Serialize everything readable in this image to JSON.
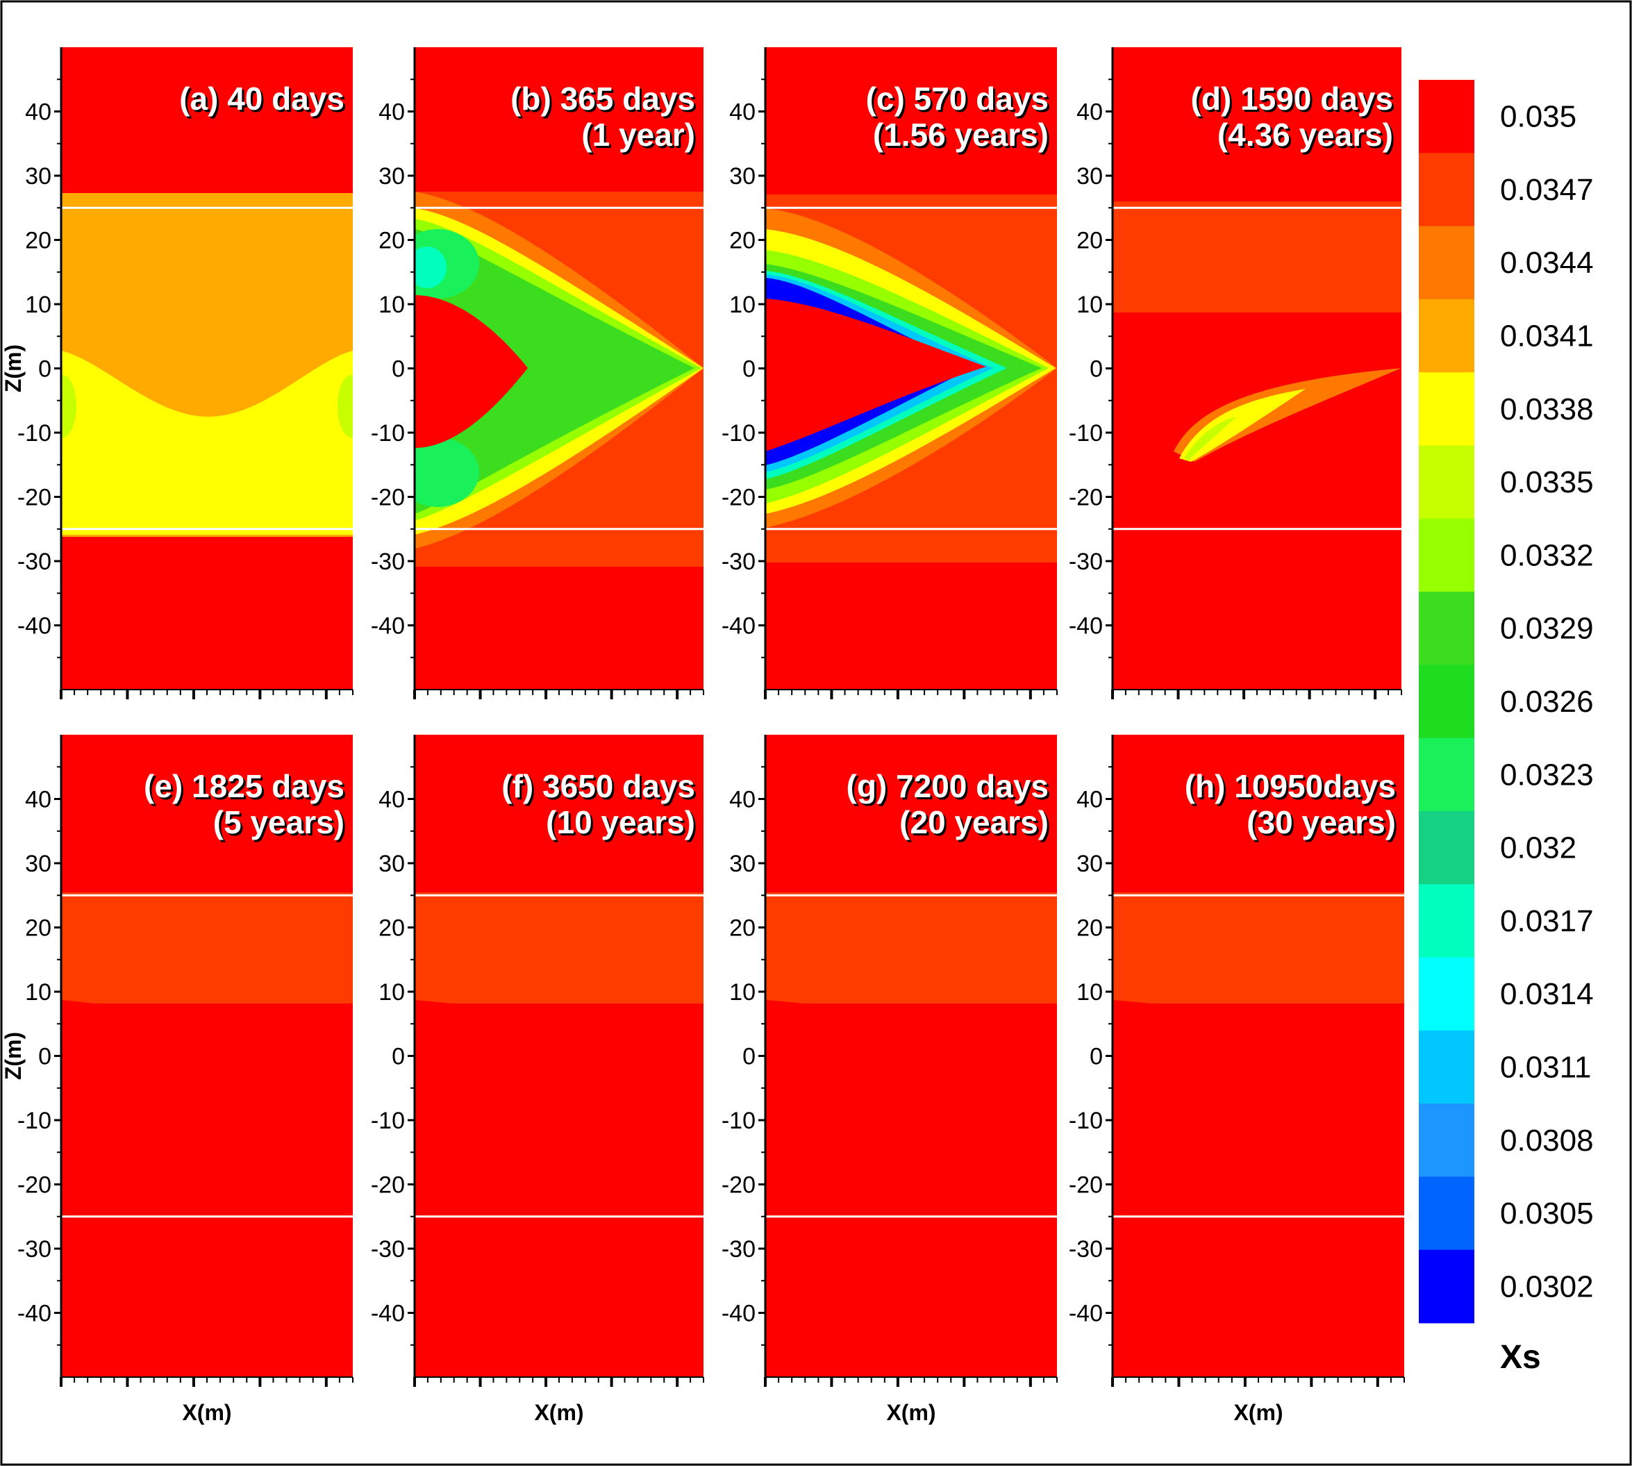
{
  "chart_data": {
    "type": "heatmap",
    "description_variable": "Xs",
    "y_axis": {
      "label": "Z(m)",
      "ticks": [
        40,
        30,
        20,
        10,
        0,
        -10,
        -20,
        -30,
        -40
      ],
      "range": [
        -50,
        50
      ]
    },
    "x_axis": {
      "label": "X(m)"
    },
    "interfaces_z": [
      25,
      -25
    ],
    "colorbar": {
      "label": "Xs",
      "levels": [
        "0.035",
        "0.0347",
        "0.0344",
        "0.0341",
        "0.0338",
        "0.0335",
        "0.0332",
        "0.0329",
        "0.0326",
        "0.0323",
        "0.032",
        "0.0317",
        "0.0314",
        "0.0311",
        "0.0308",
        "0.0305",
        "0.0302"
      ],
      "colors": [
        "#ff0000",
        "#ff3c00",
        "#ff7800",
        "#ffaa00",
        "#ffff00",
        "#c8ff00",
        "#96ff00",
        "#3cdc1e",
        "#1edc1e",
        "#19f05a",
        "#14d282",
        "#00ffbe",
        "#00ffff",
        "#00c8ff",
        "#1e96ff",
        "#0064ff",
        "#0000ff"
      ]
    },
    "panels": [
      {
        "id": "a",
        "line1": "(a) 40 days",
        "line2": ""
      },
      {
        "id": "b",
        "line1": "(b) 365 days",
        "line2": "(1 year)"
      },
      {
        "id": "c",
        "line1": "(c) 570 days",
        "line2": "(1.56 years)"
      },
      {
        "id": "d",
        "line1": "(d) 1590 days",
        "line2": "(4.36 years)"
      },
      {
        "id": "e",
        "line1": "(e) 1825 days",
        "line2": "(5 years)"
      },
      {
        "id": "f",
        "line1": "(f) 3650 days",
        "line2": "(10 years)"
      },
      {
        "id": "g",
        "line1": "(g) 7200 days",
        "line2": "(20 years)"
      },
      {
        "id": "h",
        "line1": "(h) 10950days",
        "line2": "(30 years)"
      }
    ]
  }
}
